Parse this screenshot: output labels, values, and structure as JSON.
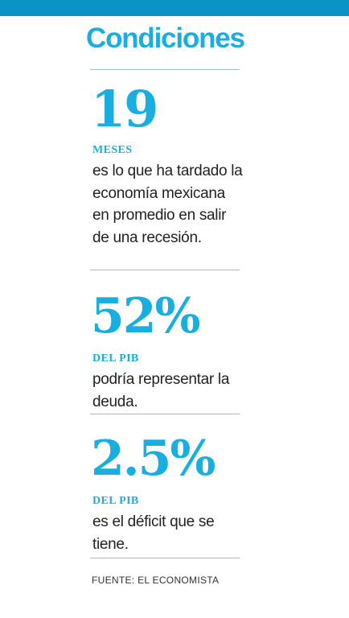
{
  "title": "Condiciones",
  "stats": [
    {
      "value": "19",
      "label": "MESES",
      "description": "es lo que ha tardado la economía mexicana en promedio en salir de una recesión."
    },
    {
      "value": "52%",
      "label": "DEL PIB",
      "description": "podría representar la deuda."
    },
    {
      "value": "2.5%",
      "label": "DEL PIB",
      "description": "es el déficit que se tiene."
    }
  ],
  "source": "FUENTE: EL ECONOMISTA",
  "colors": {
    "accent": "#18aee0",
    "top_bar": "#0a93c4",
    "text": "#222222"
  }
}
